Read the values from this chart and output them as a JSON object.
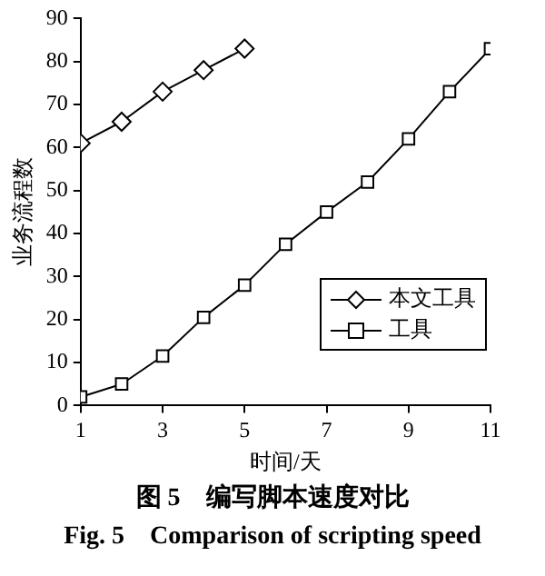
{
  "chart_data": {
    "type": "line",
    "xlabel": "时间/天",
    "ylabel": "业务流程数",
    "x": [
      1,
      2,
      3,
      4,
      5,
      6,
      7,
      8,
      9,
      10,
      11
    ],
    "series": [
      {
        "name": "本文工具",
        "color": "#000000",
        "marker": "diamond",
        "x": [
          1,
          2,
          3,
          4,
          5
        ],
        "values": [
          61,
          66,
          73,
          78,
          83
        ]
      },
      {
        "name": "工具",
        "color": "#000000",
        "marker": "square",
        "values": [
          2,
          5,
          11.5,
          20.5,
          28,
          37.5,
          45,
          52,
          62,
          73,
          83
        ]
      }
    ],
    "xlim": [
      1,
      11
    ],
    "xticks": [
      1,
      3,
      5,
      7,
      9,
      11
    ],
    "ylim": [
      0,
      90
    ],
    "yticks": [
      0,
      10,
      20,
      30,
      40,
      50,
      60,
      70,
      80,
      90
    ],
    "grid": false,
    "legend": "bottom right",
    "line_style": "solid",
    "annotations": [
      "图 5　编写脚本速度对比",
      "Fig. 5　Comparison of scripting speed"
    ]
  }
}
